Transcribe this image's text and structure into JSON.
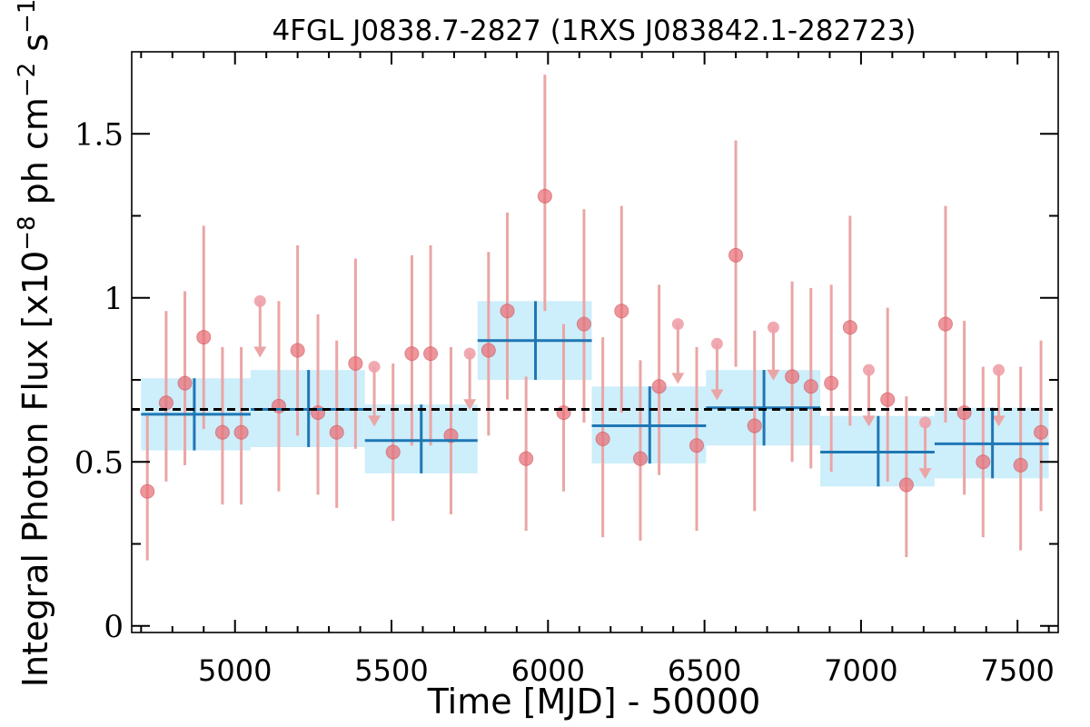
{
  "chart_data": {
    "type": "scatter",
    "title": "4FGL J0838.7-2827 (1RXS J083842.1-282723)",
    "xlabel": "Time [MJD] - 50000",
    "ylabel": "Integral Photon Flux [x10",
    "ylabel_exp1": "−8",
    "ylabel_mid": " ph cm",
    "ylabel_exp2": "−2",
    "ylabel_mid2": " s",
    "ylabel_exp3": "−1",
    "ylabel_end": "]",
    "xlim": [
      4670,
      7630
    ],
    "ylim": [
      -0.02,
      1.75
    ],
    "xticks": [
      5000,
      5500,
      6000,
      6500,
      7000,
      7500
    ],
    "xtick_labels": [
      "5000",
      "5500",
      "6000",
      "6500",
      "7000",
      "7500"
    ],
    "yticks": [
      0,
      0.5,
      1,
      1.5
    ],
    "ytick_labels": [
      "0",
      "0.5",
      "1",
      "1.5"
    ],
    "mean_flux": 0.66,
    "colors": {
      "points": "#e8737a",
      "errorbars": "#eba5a5",
      "bins": "#1f77b4",
      "bin_band": "#cdeefb",
      "mean_line": "#000000"
    },
    "grid": false,
    "series": [
      {
        "kind": "points",
        "points": [
          {
            "x": 4720,
            "y": 0.41,
            "lo": 0.2,
            "hi": 0.64
          },
          {
            "x": 4780,
            "y": 0.68,
            "lo": 0.44,
            "hi": 0.96
          },
          {
            "x": 4840,
            "y": 0.74,
            "lo": 0.49,
            "hi": 1.02
          },
          {
            "x": 4900,
            "y": 0.88,
            "lo": 0.6,
            "hi": 1.22
          },
          {
            "x": 4960,
            "y": 0.59,
            "lo": 0.37,
            "hi": 0.85
          },
          {
            "x": 5020,
            "y": 0.59,
            "lo": 0.37,
            "hi": 0.85
          },
          {
            "x": 5140,
            "y": 0.67,
            "lo": 0.41,
            "hi": 0.99
          },
          {
            "x": 5200,
            "y": 0.84,
            "lo": 0.58,
            "hi": 1.16
          },
          {
            "x": 5265,
            "y": 0.65,
            "lo": 0.4,
            "hi": 0.95
          },
          {
            "x": 5325,
            "y": 0.59,
            "lo": 0.36,
            "hi": 0.87
          },
          {
            "x": 5385,
            "y": 0.8,
            "lo": 0.54,
            "hi": 1.12
          },
          {
            "x": 5505,
            "y": 0.53,
            "lo": 0.32,
            "hi": 0.8
          },
          {
            "x": 5565,
            "y": 0.83,
            "lo": 0.55,
            "hi": 1.13
          },
          {
            "x": 5625,
            "y": 0.83,
            "lo": 0.55,
            "hi": 1.16
          },
          {
            "x": 5690,
            "y": 0.58,
            "lo": 0.34,
            "hi": 0.85
          },
          {
            "x": 5810,
            "y": 0.84,
            "lo": 0.58,
            "hi": 1.14
          },
          {
            "x": 5870,
            "y": 0.96,
            "lo": 0.69,
            "hi": 1.26
          },
          {
            "x": 5930,
            "y": 0.51,
            "lo": 0.29,
            "hi": 0.76
          },
          {
            "x": 5990,
            "y": 1.31,
            "lo": 0.96,
            "hi": 1.68
          },
          {
            "x": 6050,
            "y": 0.65,
            "lo": 0.41,
            "hi": 0.92
          },
          {
            "x": 6115,
            "y": 0.92,
            "lo": 0.62,
            "hi": 1.27
          },
          {
            "x": 6175,
            "y": 0.57,
            "lo": 0.27,
            "hi": 0.88
          },
          {
            "x": 6235,
            "y": 0.96,
            "lo": 0.65,
            "hi": 1.28
          },
          {
            "x": 6295,
            "y": 0.51,
            "lo": 0.26,
            "hi": 0.81
          },
          {
            "x": 6355,
            "y": 0.73,
            "lo": 0.46,
            "hi": 1.04
          },
          {
            "x": 6475,
            "y": 0.55,
            "lo": 0.29,
            "hi": 0.85
          },
          {
            "x": 6600,
            "y": 1.13,
            "lo": 0.79,
            "hi": 1.48
          },
          {
            "x": 6660,
            "y": 0.61,
            "lo": 0.35,
            "hi": 0.9
          },
          {
            "x": 6780,
            "y": 0.76,
            "lo": 0.5,
            "hi": 1.05
          },
          {
            "x": 6840,
            "y": 0.73,
            "lo": 0.48,
            "hi": 1.03
          },
          {
            "x": 6905,
            "y": 0.74,
            "lo": 0.47,
            "hi": 1.04
          },
          {
            "x": 6965,
            "y": 0.91,
            "lo": 0.61,
            "hi": 1.25
          },
          {
            "x": 7085,
            "y": 0.69,
            "lo": 0.44,
            "hi": 0.97
          },
          {
            "x": 7145,
            "y": 0.43,
            "lo": 0.21,
            "hi": 0.7
          },
          {
            "x": 7270,
            "y": 0.92,
            "lo": 0.62,
            "hi": 1.28
          },
          {
            "x": 7330,
            "y": 0.65,
            "lo": 0.4,
            "hi": 0.93
          },
          {
            "x": 7390,
            "y": 0.5,
            "lo": 0.27,
            "hi": 0.79
          },
          {
            "x": 7510,
            "y": 0.49,
            "lo": 0.23,
            "hi": 0.79
          },
          {
            "x": 7575,
            "y": 0.59,
            "lo": 0.35,
            "hi": 0.87
          }
        ]
      },
      {
        "kind": "upper_limits",
        "points": [
          {
            "x": 5080,
            "y": 0.99,
            "arrow": 0.84
          },
          {
            "x": 5445,
            "y": 0.79,
            "arrow": 0.63
          },
          {
            "x": 5750,
            "y": 0.83,
            "arrow": 0.68
          },
          {
            "x": 6415,
            "y": 0.92,
            "arrow": 0.76
          },
          {
            "x": 6540,
            "y": 0.86,
            "arrow": 0.71
          },
          {
            "x": 6720,
            "y": 0.91,
            "arrow": 0.77
          },
          {
            "x": 7025,
            "y": 0.78,
            "arrow": 0.63
          },
          {
            "x": 7205,
            "y": 0.62,
            "arrow": 0.47
          },
          {
            "x": 7440,
            "y": 0.78,
            "arrow": 0.63
          }
        ]
      },
      {
        "kind": "binned",
        "bins": [
          {
            "x0": 4700,
            "x1": 5050,
            "xc": 4870,
            "y": 0.645,
            "lo": 0.535,
            "hi": 0.755
          },
          {
            "x0": 5050,
            "x1": 5415,
            "xc": 5235,
            "y": 0.66,
            "lo": 0.545,
            "hi": 0.78
          },
          {
            "x0": 5415,
            "x1": 5775,
            "xc": 5595,
            "y": 0.565,
            "lo": 0.465,
            "hi": 0.675
          },
          {
            "x0": 5775,
            "x1": 6140,
            "xc": 5960,
            "y": 0.87,
            "lo": 0.75,
            "hi": 0.99
          },
          {
            "x0": 6140,
            "x1": 6505,
            "xc": 6325,
            "y": 0.61,
            "lo": 0.495,
            "hi": 0.73
          },
          {
            "x0": 6505,
            "x1": 6870,
            "xc": 6690,
            "y": 0.665,
            "lo": 0.55,
            "hi": 0.78
          },
          {
            "x0": 6870,
            "x1": 7235,
            "xc": 7055,
            "y": 0.53,
            "lo": 0.425,
            "hi": 0.64
          },
          {
            "x0": 7235,
            "x1": 7600,
            "xc": 7420,
            "y": 0.555,
            "lo": 0.45,
            "hi": 0.665
          }
        ]
      }
    ]
  }
}
